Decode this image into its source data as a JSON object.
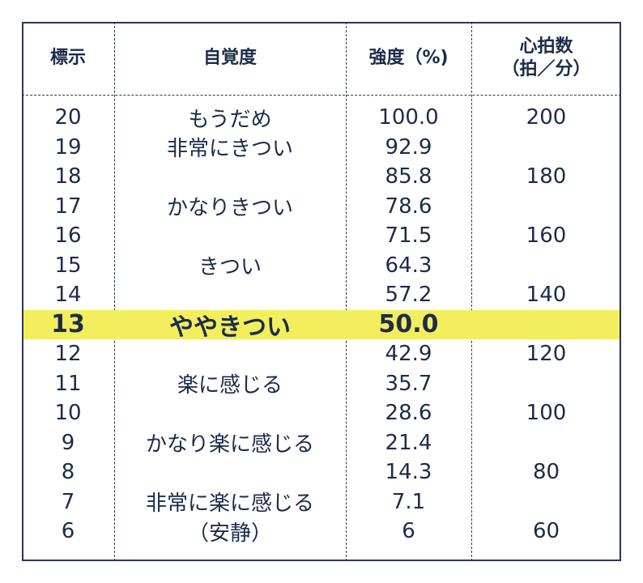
{
  "headers": {
    "col1": "標示",
    "col2": "自覚度",
    "col3": "強度（%)",
    "col4_line1": "心拍数",
    "col4_line2": "（拍／分）"
  },
  "rows": [
    {
      "mark": "20",
      "perceived": "もうだめ",
      "intensity": "100.0",
      "hr": "200"
    },
    {
      "mark": "19",
      "perceived": "非常にきつい",
      "intensity": "92.9",
      "hr": ""
    },
    {
      "mark": "18",
      "perceived": "",
      "intensity": "85.8",
      "hr": "180"
    },
    {
      "mark": "17",
      "perceived": "かなりきつい",
      "intensity": "78.6",
      "hr": ""
    },
    {
      "mark": "16",
      "perceived": "",
      "intensity": "71.5",
      "hr": "160"
    },
    {
      "mark": "15",
      "perceived": "きつい",
      "intensity": "64.3",
      "hr": ""
    },
    {
      "mark": "14",
      "perceived": "",
      "intensity": "57.2",
      "hr": "140"
    },
    {
      "mark": "13",
      "perceived": "ややきつい",
      "intensity": "50.0",
      "hr": "",
      "highlight": true
    },
    {
      "mark": "12",
      "perceived": "",
      "intensity": "42.9",
      "hr": "120"
    },
    {
      "mark": "11",
      "perceived": "楽に感じる",
      "intensity": "35.7",
      "hr": ""
    },
    {
      "mark": "10",
      "perceived": "",
      "intensity": "28.6",
      "hr": "100"
    },
    {
      "mark": "9",
      "perceived": "かなり楽に感じる",
      "intensity": "21.4",
      "hr": ""
    },
    {
      "mark": "8",
      "perceived": "",
      "intensity": "14.3",
      "hr": "80"
    },
    {
      "mark": "7",
      "perceived": "非常に楽に感じる",
      "intensity": "7.1",
      "hr": ""
    },
    {
      "mark": "6",
      "perceived": "（安静）",
      "intensity": "6",
      "hr": "60"
    }
  ],
  "colors": {
    "text": "#1d2b4a",
    "border": "#2a3650",
    "highlight": "#f2ee5e"
  }
}
